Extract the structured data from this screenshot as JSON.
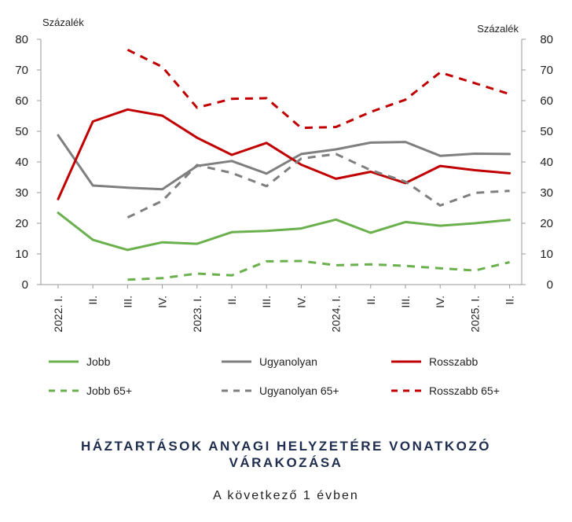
{
  "chart_data": {
    "type": "line",
    "y_unit_left": "Százalék",
    "y_unit_right": "Százalék",
    "ylim": [
      0,
      80
    ],
    "y_ticks": [
      0,
      10,
      20,
      30,
      40,
      50,
      60,
      70,
      80
    ],
    "categories": [
      "2022. I.",
      "II.",
      "III.",
      "IV.",
      "2023. I.",
      "II.",
      "III.",
      "IV.",
      "2024. I.",
      "II.",
      "III.",
      "IV.",
      "2025. I.",
      "II."
    ],
    "grid": false,
    "legend_position": "bottom",
    "series": [
      {
        "name": "Jobb",
        "color": "#6ab04c",
        "dashed": false,
        "values": [
          23.4,
          14.6,
          11.3,
          13.8,
          13.3,
          17.1,
          17.5,
          18.3,
          21.2,
          16.9,
          20.4,
          19.2,
          20.0,
          21.1
        ]
      },
      {
        "name": "Ugyanolyan",
        "color": "#7f7f7f",
        "dashed": false,
        "values": [
          48.7,
          32.3,
          31.6,
          31.1,
          38.7,
          40.3,
          36.2,
          42.6,
          44.1,
          46.3,
          46.5,
          42.0,
          42.7,
          42.6
        ]
      },
      {
        "name": "Rosszabb",
        "color": "#c00000",
        "dashed": false,
        "values": [
          27.9,
          53.2,
          57.1,
          55.1,
          47.9,
          42.3,
          46.2,
          39.1,
          34.5,
          36.8,
          33.1,
          38.7,
          37.3,
          36.3
        ]
      },
      {
        "name": "Jobb 65+",
        "color": "#6ab04c",
        "dashed": true,
        "values": [
          null,
          null,
          1.6,
          2.1,
          3.6,
          3.0,
          7.6,
          7.7,
          6.3,
          6.6,
          6.1,
          5.3,
          4.6,
          7.3
        ]
      },
      {
        "name": "Ugyanolyan 65+",
        "color": "#7f7f7f",
        "dashed": true,
        "values": [
          null,
          null,
          21.9,
          27.3,
          39.0,
          36.4,
          32.1,
          41.1,
          42.6,
          37.3,
          33.6,
          25.8,
          29.9,
          30.6
        ]
      },
      {
        "name": "Rosszabb 65+",
        "color": "#c00000",
        "dashed": true,
        "values": [
          null,
          null,
          76.6,
          71.0,
          57.7,
          60.6,
          60.8,
          51.1,
          51.4,
          56.3,
          60.3,
          69.2,
          65.7,
          62.1
        ]
      }
    ]
  },
  "title_line1": "HÁZTARTÁSOK ANYAGI HELYZETÉRE VONATKOZÓ",
  "title_line2": "VÁRAKOZÁSA",
  "subtitle": "A következő 1 évben"
}
